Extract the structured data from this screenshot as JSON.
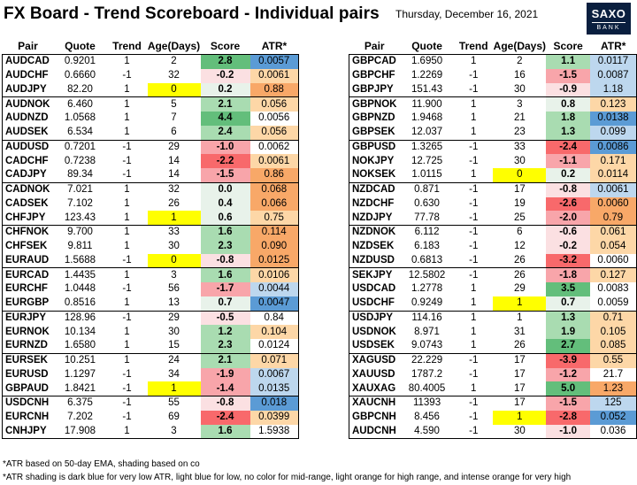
{
  "header": {
    "title": "FX Board - Trend Scoreboard - Individual pairs",
    "date": "Thursday, December 16, 2021",
    "logo_line1": "SAXO",
    "logo_line2": "BANK"
  },
  "columns": [
    "Pair",
    "Quote",
    "Trend",
    "Age(Days)",
    "Score",
    "ATR*"
  ],
  "colors": {
    "score_strong_pos": "#63be7b",
    "score_pos": "#a9dcb1",
    "score_weak": "#e8f2ea",
    "score_weak_neg": "#fbe0e2",
    "score_neg": "#f8a5aa",
    "score_strong_neg": "#f8696b",
    "age_highlight": "#ffff00",
    "atr_dark_blue": "#5b9bd5",
    "atr_light_blue": "#bdd7ee",
    "atr_light_orange": "#fdd7a7",
    "atr_intense_orange": "#f8a868"
  },
  "left_table": [
    {
      "pair": "AUDCAD",
      "quote": "0.9201",
      "trend": "1",
      "age": "2",
      "score": "2.8",
      "atr": "0.0057",
      "age_hl": false,
      "score_c": "sp",
      "atr_c": "db"
    },
    {
      "pair": "AUDCHF",
      "quote": "0.6660",
      "trend": "-1",
      "age": "32",
      "score": "-0.2",
      "atr": "0.0061",
      "age_hl": false,
      "score_c": "wn",
      "atr_c": "lo"
    },
    {
      "pair": "AUDJPY",
      "quote": "82.20",
      "trend": "1",
      "age": "0",
      "score": "0.2",
      "atr": "0.88",
      "age_hl": true,
      "score_c": "w",
      "atr_c": "io"
    },
    {
      "pair": "AUDNOK",
      "quote": "6.460",
      "trend": "1",
      "age": "5",
      "score": "2.1",
      "atr": "0.056",
      "age_hl": false,
      "score_c": "p",
      "atr_c": "lo"
    },
    {
      "pair": "AUDNZD",
      "quote": "1.0568",
      "trend": "1",
      "age": "7",
      "score": "4.4",
      "atr": "0.0056",
      "age_hl": false,
      "score_c": "sp",
      "atr_c": ""
    },
    {
      "pair": "AUDSEK",
      "quote": "6.534",
      "trend": "1",
      "age": "6",
      "score": "2.4",
      "atr": "0.056",
      "age_hl": false,
      "score_c": "p",
      "atr_c": "lo"
    },
    {
      "pair": "AUDUSD",
      "quote": "0.7201",
      "trend": "-1",
      "age": "29",
      "score": "-1.0",
      "atr": "0.0062",
      "age_hl": false,
      "score_c": "n",
      "atr_c": ""
    },
    {
      "pair": "CADCHF",
      "quote": "0.7238",
      "trend": "-1",
      "age": "14",
      "score": "-2.2",
      "atr": "0.0061",
      "age_hl": false,
      "score_c": "sn",
      "atr_c": "lo"
    },
    {
      "pair": "CADJPY",
      "quote": "89.34",
      "trend": "-1",
      "age": "14",
      "score": "-1.5",
      "atr": "0.86",
      "age_hl": false,
      "score_c": "n",
      "atr_c": "io"
    },
    {
      "pair": "CADNOK",
      "quote": "7.021",
      "trend": "1",
      "age": "32",
      "score": "0.0",
      "atr": "0.068",
      "age_hl": false,
      "score_c": "w",
      "atr_c": "io"
    },
    {
      "pair": "CADSEK",
      "quote": "7.102",
      "trend": "1",
      "age": "26",
      "score": "0.4",
      "atr": "0.066",
      "age_hl": false,
      "score_c": "w",
      "atr_c": "io"
    },
    {
      "pair": "CHFJPY",
      "quote": "123.43",
      "trend": "1",
      "age": "1",
      "score": "0.6",
      "atr": "0.75",
      "age_hl": true,
      "score_c": "w",
      "atr_c": "lo"
    },
    {
      "pair": "CHFNOK",
      "quote": "9.700",
      "trend": "1",
      "age": "33",
      "score": "1.6",
      "atr": "0.114",
      "age_hl": false,
      "score_c": "p",
      "atr_c": "io"
    },
    {
      "pair": "CHFSEK",
      "quote": "9.811",
      "trend": "1",
      "age": "30",
      "score": "2.3",
      "atr": "0.090",
      "age_hl": false,
      "score_c": "p",
      "atr_c": "io"
    },
    {
      "pair": "EURAUD",
      "quote": "1.5688",
      "trend": "-1",
      "age": "0",
      "score": "-0.8",
      "atr": "0.0125",
      "age_hl": true,
      "score_c": "wn",
      "atr_c": "io"
    },
    {
      "pair": "EURCAD",
      "quote": "1.4435",
      "trend": "1",
      "age": "3",
      "score": "1.6",
      "atr": "0.0106",
      "age_hl": false,
      "score_c": "p",
      "atr_c": "lo"
    },
    {
      "pair": "EURCHF",
      "quote": "1.0448",
      "trend": "-1",
      "age": "56",
      "score": "-1.7",
      "atr": "0.0044",
      "age_hl": false,
      "score_c": "n",
      "atr_c": "lb"
    },
    {
      "pair": "EURGBP",
      "quote": "0.8516",
      "trend": "1",
      "age": "13",
      "score": "0.7",
      "atr": "0.0047",
      "age_hl": false,
      "score_c": "w",
      "atr_c": "db"
    },
    {
      "pair": "EURJPY",
      "quote": "128.96",
      "trend": "-1",
      "age": "29",
      "score": "-0.5",
      "atr": "0.84",
      "age_hl": false,
      "score_c": "wn",
      "atr_c": ""
    },
    {
      "pair": "EURNOK",
      "quote": "10.134",
      "trend": "1",
      "age": "30",
      "score": "1.2",
      "atr": "0.104",
      "age_hl": false,
      "score_c": "p",
      "atr_c": "lo"
    },
    {
      "pair": "EURNZD",
      "quote": "1.6580",
      "trend": "1",
      "age": "15",
      "score": "2.3",
      "atr": "0.0124",
      "age_hl": false,
      "score_c": "p",
      "atr_c": ""
    },
    {
      "pair": "EURSEK",
      "quote": "10.251",
      "trend": "1",
      "age": "24",
      "score": "2.1",
      "atr": "0.071",
      "age_hl": false,
      "score_c": "p",
      "atr_c": "lo"
    },
    {
      "pair": "EURUSD",
      "quote": "1.1297",
      "trend": "-1",
      "age": "34",
      "score": "-1.9",
      "atr": "0.0067",
      "age_hl": false,
      "score_c": "n",
      "atr_c": "lb"
    },
    {
      "pair": "GBPAUD",
      "quote": "1.8421",
      "trend": "-1",
      "age": "1",
      "score": "-1.4",
      "atr": "0.0135",
      "age_hl": true,
      "score_c": "n",
      "atr_c": "lb"
    },
    {
      "pair": "USDCNH",
      "quote": "6.375",
      "trend": "-1",
      "age": "55",
      "score": "-0.8",
      "atr": "0.018",
      "age_hl": false,
      "score_c": "wn",
      "atr_c": "db"
    },
    {
      "pair": "EURCNH",
      "quote": "7.202",
      "trend": "-1",
      "age": "69",
      "score": "-2.4",
      "atr": "0.0399",
      "age_hl": false,
      "score_c": "sn",
      "atr_c": "lo"
    },
    {
      "pair": "CNHJPY",
      "quote": "17.908",
      "trend": "1",
      "age": "3",
      "score": "1.6",
      "atr": "1.5938",
      "age_hl": false,
      "score_c": "p",
      "atr_c": ""
    }
  ],
  "right_table": [
    {
      "pair": "GBPCAD",
      "quote": "1.6950",
      "trend": "1",
      "age": "2",
      "score": "1.1",
      "atr": "0.0117",
      "age_hl": false,
      "score_c": "p",
      "atr_c": "lb"
    },
    {
      "pair": "GBPCHF",
      "quote": "1.2269",
      "trend": "-1",
      "age": "16",
      "score": "-1.5",
      "atr": "0.0087",
      "age_hl": false,
      "score_c": "n",
      "atr_c": "lb"
    },
    {
      "pair": "GBPJPY",
      "quote": "151.43",
      "trend": "-1",
      "age": "30",
      "score": "-0.9",
      "atr": "1.18",
      "age_hl": false,
      "score_c": "wn",
      "atr_c": "lb"
    },
    {
      "pair": "GBPNOK",
      "quote": "11.900",
      "trend": "1",
      "age": "3",
      "score": "0.8",
      "atr": "0.123",
      "age_hl": false,
      "score_c": "w",
      "atr_c": "lo"
    },
    {
      "pair": "GBPNZD",
      "quote": "1.9468",
      "trend": "1",
      "age": "21",
      "score": "1.8",
      "atr": "0.0138",
      "age_hl": false,
      "score_c": "p",
      "atr_c": "db"
    },
    {
      "pair": "GBPSEK",
      "quote": "12.037",
      "trend": "1",
      "age": "23",
      "score": "1.3",
      "atr": "0.099",
      "age_hl": false,
      "score_c": "p",
      "atr_c": "lb"
    },
    {
      "pair": "GBPUSD",
      "quote": "1.3265",
      "trend": "-1",
      "age": "33",
      "score": "-2.4",
      "atr": "0.0086",
      "age_hl": false,
      "score_c": "sn",
      "atr_c": "db"
    },
    {
      "pair": "NOKJPY",
      "quote": "12.725",
      "trend": "-1",
      "age": "30",
      "score": "-1.1",
      "atr": "0.171",
      "age_hl": false,
      "score_c": "n",
      "atr_c": "lo"
    },
    {
      "pair": "NOKSEK",
      "quote": "1.0115",
      "trend": "1",
      "age": "0",
      "score": "0.2",
      "atr": "0.0114",
      "age_hl": true,
      "score_c": "w",
      "atr_c": "lo"
    },
    {
      "pair": "NZDCAD",
      "quote": "0.871",
      "trend": "-1",
      "age": "17",
      "score": "-0.8",
      "atr": "0.0061",
      "age_hl": false,
      "score_c": "wn",
      "atr_c": "lb"
    },
    {
      "pair": "NZDCHF",
      "quote": "0.630",
      "trend": "-1",
      "age": "19",
      "score": "-2.6",
      "atr": "0.0060",
      "age_hl": false,
      "score_c": "sn",
      "atr_c": "io"
    },
    {
      "pair": "NZDJPY",
      "quote": "77.78",
      "trend": "-1",
      "age": "25",
      "score": "-2.0",
      "atr": "0.79",
      "age_hl": false,
      "score_c": "n",
      "atr_c": "io"
    },
    {
      "pair": "NZDNOK",
      "quote": "6.112",
      "trend": "-1",
      "age": "6",
      "score": "-0.6",
      "atr": "0.061",
      "age_hl": false,
      "score_c": "wn",
      "atr_c": "lo"
    },
    {
      "pair": "NZDSEK",
      "quote": "6.183",
      "trend": "-1",
      "age": "12",
      "score": "-0.2",
      "atr": "0.054",
      "age_hl": false,
      "score_c": "wn",
      "atr_c": "lo"
    },
    {
      "pair": "NZDUSD",
      "quote": "0.6813",
      "trend": "-1",
      "age": "26",
      "score": "-3.2",
      "atr": "0.0060",
      "age_hl": false,
      "score_c": "sn",
      "atr_c": ""
    },
    {
      "pair": "SEKJPY",
      "quote": "12.5802",
      "trend": "-1",
      "age": "26",
      "score": "-1.8",
      "atr": "0.127",
      "age_hl": false,
      "score_c": "n",
      "atr_c": "lo"
    },
    {
      "pair": "USDCAD",
      "quote": "1.2778",
      "trend": "1",
      "age": "29",
      "score": "3.5",
      "atr": "0.0083",
      "age_hl": false,
      "score_c": "sp",
      "atr_c": ""
    },
    {
      "pair": "USDCHF",
      "quote": "0.9249",
      "trend": "1",
      "age": "1",
      "score": "0.7",
      "atr": "0.0059",
      "age_hl": true,
      "score_c": "w",
      "atr_c": ""
    },
    {
      "pair": "USDJPY",
      "quote": "114.16",
      "trend": "1",
      "age": "1",
      "score": "1.3",
      "atr": "0.71",
      "age_hl": false,
      "score_c": "p",
      "atr_c": "lo"
    },
    {
      "pair": "USDNOK",
      "quote": "8.971",
      "trend": "1",
      "age": "31",
      "score": "1.9",
      "atr": "0.105",
      "age_hl": false,
      "score_c": "p",
      "atr_c": "lo"
    },
    {
      "pair": "USDSEK",
      "quote": "9.0743",
      "trend": "1",
      "age": "26",
      "score": "2.7",
      "atr": "0.085",
      "age_hl": false,
      "score_c": "sp",
      "atr_c": "lo"
    },
    {
      "pair": "XAGUSD",
      "quote": "22.229",
      "trend": "-1",
      "age": "17",
      "score": "-3.9",
      "atr": "0.55",
      "age_hl": false,
      "score_c": "sn",
      "atr_c": "lo"
    },
    {
      "pair": "XAUUSD",
      "quote": "1787.2",
      "trend": "-1",
      "age": "17",
      "score": "-1.2",
      "atr": "21.7",
      "age_hl": false,
      "score_c": "n",
      "atr_c": ""
    },
    {
      "pair": "XAUXAG",
      "quote": "80.4005",
      "trend": "1",
      "age": "17",
      "score": "5.0",
      "atr": "1.23",
      "age_hl": false,
      "score_c": "sp",
      "atr_c": "io"
    },
    {
      "pair": "XAUCNH",
      "quote": "11393",
      "trend": "-1",
      "age": "17",
      "score": "-1.5",
      "atr": "125",
      "age_hl": false,
      "score_c": "n",
      "atr_c": "lb"
    },
    {
      "pair": "GBPCNH",
      "quote": "8.456",
      "trend": "-1",
      "age": "1",
      "score": "-2.8",
      "atr": "0.052",
      "age_hl": true,
      "score_c": "sn",
      "atr_c": "db"
    },
    {
      "pair": "AUDCNH",
      "quote": "4.590",
      "trend": "-1",
      "age": "30",
      "score": "-1.0",
      "atr": "0.036",
      "age_hl": false,
      "score_c": "wn",
      "atr_c": ""
    }
  ],
  "footnotes": {
    "line1": "*ATR based on 50-day EMA, shading based on co",
    "line2": "*ATR shading is dark blue for very low ATR, light blue for low, no color for mid-range, light orange for high range, and intense orange for very high"
  }
}
